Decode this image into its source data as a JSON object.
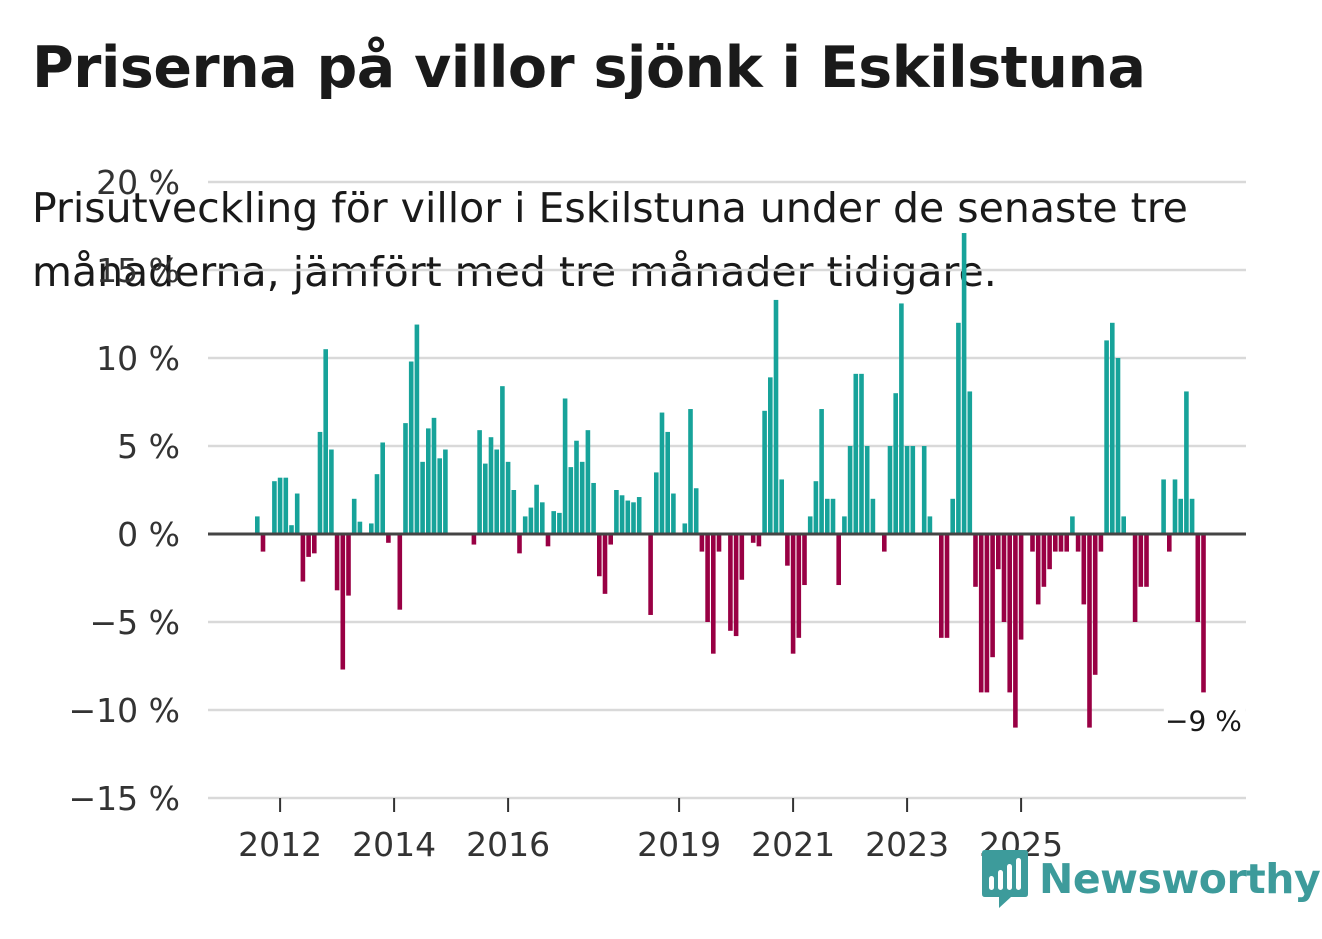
{
  "title": "Priserna på villor sjönk i Eskilstuna",
  "subtitle": "Prisutveckling för villor i Eskilstuna under de senaste tre månaderna, jämfört med tre månader tidigare.",
  "brand": {
    "name": "Newsworthy",
    "icon": "newsworthy-logo-icon",
    "color": "#3d9b9b"
  },
  "colors": {
    "positive": "#17a39a",
    "negative": "#990044",
    "grid": "#d9d9d9",
    "zero_line": "#444444"
  },
  "chart_data": {
    "type": "bar",
    "title": "Priserna på villor sjönk i Eskilstuna",
    "xlabel": "",
    "ylabel": "",
    "ylim": [
      -15,
      20
    ],
    "y_ticks": [
      20,
      15,
      10,
      5,
      0,
      -5,
      -10,
      -15
    ],
    "y_tick_labels": [
      "20 %",
      "15 %",
      "10 %",
      "5 %",
      "0 %",
      "−5 %",
      "−10 %",
      "−15 %"
    ],
    "x_tick_labels": [
      {
        "label": "2012",
        "index": 4
      },
      {
        "label": "2014",
        "index": 24
      },
      {
        "label": "2016",
        "index": 44
      },
      {
        "label": "2019",
        "index": 74
      },
      {
        "label": "2021",
        "index": 94
      },
      {
        "label": "2023",
        "index": 114
      },
      {
        "label": "2025",
        "index": 134
      }
    ],
    "annotation": {
      "label": "−9 %",
      "value": -9
    },
    "unit": "%",
    "values": [
      1,
      -1,
      0,
      3,
      3.2,
      3.2,
      0.5,
      2.3,
      -2.7,
      -1.3,
      -1.1,
      5.8,
      10.5,
      4.8,
      -3.2,
      -7.7,
      -3.5,
      2,
      0.7,
      0,
      0.6,
      3.4,
      5.2,
      -0.5,
      0,
      -4.3,
      6.3,
      9.8,
      11.9,
      4.1,
      6,
      6.6,
      4.3,
      4.8,
      0,
      0,
      0,
      0,
      -0.6,
      5.9,
      4,
      5.5,
      4.8,
      8.4,
      4.1,
      2.5,
      -1.1,
      1,
      1.5,
      2.8,
      1.8,
      -0.7,
      1.3,
      1.2,
      7.7,
      3.8,
      5.3,
      4.1,
      5.9,
      2.9,
      -2.4,
      -3.4,
      -0.6,
      2.5,
      2.2,
      1.9,
      1.8,
      2.1,
      0,
      -4.6,
      3.5,
      6.9,
      5.8,
      2.3,
      0,
      0.6,
      7.1,
      2.6,
      -1,
      -5,
      -6.8,
      -1,
      0,
      -5.5,
      -5.8,
      -2.6,
      0,
      -0.5,
      -0.7,
      7,
      8.9,
      13.3,
      3.1,
      -1.8,
      -6.8,
      -5.9,
      -2.9,
      1,
      3,
      7.1,
      2,
      2,
      -2.9,
      1,
      5,
      9.1,
      9.1,
      5,
      2,
      0,
      -1,
      5,
      8,
      13.1,
      5,
      5,
      0,
      5,
      1,
      0,
      -5.9,
      -5.9,
      2,
      12,
      17.1,
      8.1,
      -3,
      -9,
      -9,
      -7,
      -2,
      -5,
      -9,
      -11,
      -6,
      0,
      -1,
      -4,
      -3,
      -2,
      -1,
      -1,
      -1,
      1,
      -1,
      -4,
      -11,
      -8,
      -1,
      11,
      12,
      10,
      1,
      0,
      -5,
      -3,
      -3,
      0,
      0,
      3.1,
      -1,
      3.1,
      2,
      8.1,
      2,
      -5,
      -9
    ]
  }
}
